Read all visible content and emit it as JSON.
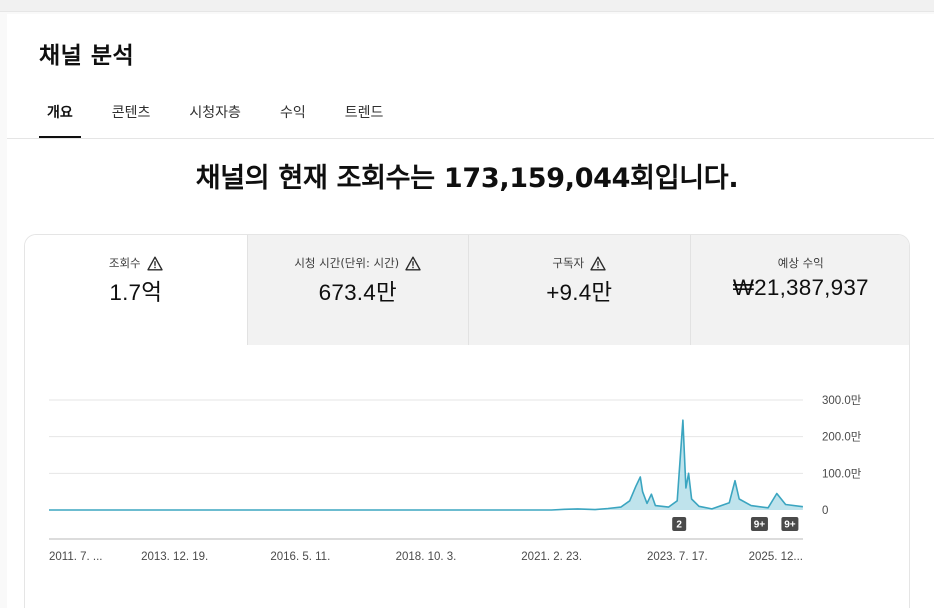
{
  "page": {
    "title": "채널 분석"
  },
  "tabs": [
    {
      "label": "개요",
      "active": true
    },
    {
      "label": "콘텐츠",
      "active": false
    },
    {
      "label": "시청자층",
      "active": false
    },
    {
      "label": "수익",
      "active": false
    },
    {
      "label": "트렌드",
      "active": false
    }
  ],
  "headline": "채널의 현재 조회수는 173,159,044회입니다.",
  "metrics": [
    {
      "label": "조회수",
      "value": "1.7억",
      "warning_icon": "warning-triangle-icon",
      "active": true
    },
    {
      "label": "시청 시간(단위: 시간)",
      "value": "673.4만",
      "warning_icon": "warning-triangle-icon",
      "active": false
    },
    {
      "label": "구독자",
      "value": "+9.4만",
      "warning_icon": "warning-triangle-icon",
      "active": false
    },
    {
      "label": "예상 수익",
      "value": "₩21,387,937",
      "active": false
    }
  ],
  "colors": {
    "line": "#3ba5c0",
    "area": "#bfe3ec",
    "badge": "#4a4a4a"
  },
  "chart_data": {
    "type": "area",
    "y_ticks": [
      "300.0만",
      "200.0만",
      "100.0만",
      "0"
    ],
    "ylim": [
      0,
      3000000
    ],
    "x_tick_labels": [
      "2011. 7. ...",
      "2013. 12. 19.",
      "2016. 5. 11.",
      "2018. 10. 3.",
      "2021. 2. 23.",
      "2023. 7. 17.",
      "2025. 12..."
    ],
    "xlim": [
      "2011-07-01",
      "2026-01-01"
    ],
    "grid": true,
    "series": [
      {
        "points": [
          [
            "2011-07-01",
            0
          ],
          [
            "2021-03-01",
            0
          ],
          [
            "2021-06-01",
            20000
          ],
          [
            "2021-09-01",
            30000
          ],
          [
            "2022-01-01",
            10000
          ],
          [
            "2022-04-01",
            40000
          ],
          [
            "2022-07-01",
            80000
          ],
          [
            "2022-09-01",
            250000
          ],
          [
            "2022-10-15",
            650000
          ],
          [
            "2022-11-15",
            900000
          ],
          [
            "2022-12-01",
            500000
          ],
          [
            "2023-01-01",
            180000
          ],
          [
            "2023-02-01",
            430000
          ],
          [
            "2023-03-01",
            120000
          ],
          [
            "2023-06-01",
            80000
          ],
          [
            "2023-08-01",
            250000
          ],
          [
            "2023-09-10",
            2450000
          ],
          [
            "2023-10-01",
            600000
          ],
          [
            "2023-10-20",
            1000000
          ],
          [
            "2023-11-10",
            300000
          ],
          [
            "2024-01-01",
            100000
          ],
          [
            "2024-04-01",
            30000
          ],
          [
            "2024-08-01",
            200000
          ],
          [
            "2024-09-10",
            800000
          ],
          [
            "2024-10-10",
            300000
          ],
          [
            "2025-01-01",
            120000
          ],
          [
            "2025-05-01",
            60000
          ],
          [
            "2025-07-01",
            450000
          ],
          [
            "2025-09-01",
            150000
          ],
          [
            "2025-12-31",
            90000
          ]
        ]
      }
    ],
    "annotations": [
      {
        "label": "2",
        "date": "2023-08-15"
      },
      {
        "label": "9+",
        "date": "2025-03-01"
      },
      {
        "label": "9+",
        "date": "2025-10-01"
      }
    ]
  }
}
